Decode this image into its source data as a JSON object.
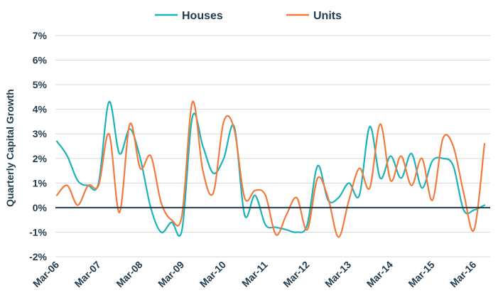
{
  "chart_data": {
    "type": "line",
    "title": "",
    "xlabel": "",
    "ylabel": "Quarterly Capital Growth",
    "ylim": [
      -2,
      7
    ],
    "y_ticks": [
      "-2%",
      "-1%",
      "0%",
      "1%",
      "2%",
      "3%",
      "4%",
      "5%",
      "6%",
      "7%"
    ],
    "grid": true,
    "legend_position": "top",
    "x_ticks": [
      "Mar-06",
      "Mar-07",
      "Mar-08",
      "Mar-09",
      "Mar-10",
      "Mar-11",
      "Mar-12",
      "Mar-13",
      "Mar-14",
      "Mar-15",
      "Mar-16"
    ],
    "x": [
      "Mar-06",
      "Jun-06",
      "Sep-06",
      "Dec-06",
      "Mar-07",
      "Jun-07",
      "Sep-07",
      "Dec-07",
      "Mar-08",
      "Jun-08",
      "Sep-08",
      "Dec-08",
      "Mar-09",
      "Jun-09",
      "Sep-09",
      "Dec-09",
      "Mar-10",
      "Jun-10",
      "Sep-10",
      "Dec-10",
      "Mar-11",
      "Jun-11",
      "Sep-11",
      "Dec-11",
      "Mar-12",
      "Jun-12",
      "Sep-12",
      "Dec-12",
      "Mar-13",
      "Jun-13",
      "Sep-13",
      "Dec-13",
      "Mar-14",
      "Jun-14",
      "Sep-14",
      "Dec-14",
      "Mar-15",
      "Jun-15",
      "Sep-15",
      "Dec-15",
      "Mar-16",
      "Jun-16"
    ],
    "series": [
      {
        "name": "Houses",
        "color": "#1ab3b8",
        "values": [
          2.7,
          2.1,
          1.1,
          0.9,
          1.0,
          4.3,
          2.2,
          3.2,
          2.0,
          0.0,
          -1.0,
          -0.6,
          -0.9,
          3.7,
          2.5,
          1.4,
          2.0,
          3.3,
          -0.3,
          0.5,
          -0.7,
          -0.8,
          -0.9,
          -1.0,
          -0.7,
          1.7,
          0.3,
          0.4,
          1.0,
          0.5,
          3.3,
          1.2,
          2.1,
          1.2,
          2.2,
          0.8,
          1.9,
          2.0,
          1.7,
          -0.1,
          -0.1,
          0.1
        ]
      },
      {
        "name": "Units",
        "color": "#f27a3d",
        "values": [
          0.5,
          0.9,
          0.1,
          0.9,
          0.9,
          3.0,
          -0.2,
          3.4,
          1.6,
          2.1,
          0.2,
          -0.5,
          -0.3,
          4.3,
          1.5,
          0.6,
          3.5,
          3.2,
          0.4,
          0.7,
          0.5,
          -1.1,
          -0.3,
          0.4,
          -0.9,
          1.2,
          0.4,
          -1.2,
          0.3,
          1.6,
          0.8,
          3.4,
          1.1,
          2.1,
          0.9,
          2.0,
          0.3,
          2.8,
          2.5,
          0.6,
          -0.9,
          2.6
        ]
      }
    ]
  }
}
